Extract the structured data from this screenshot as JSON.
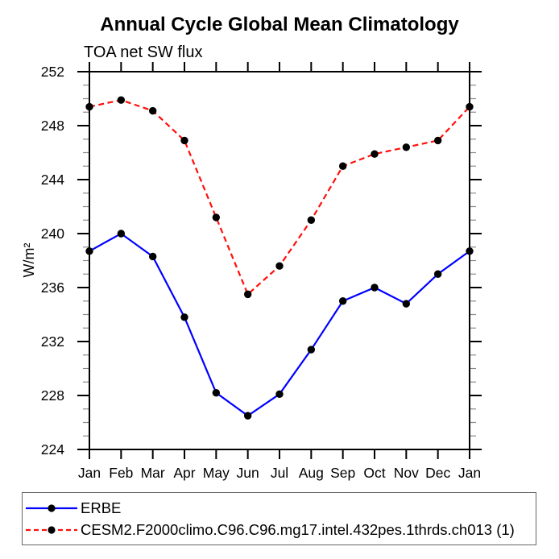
{
  "chart_data": {
    "type": "line",
    "title": "Annual Cycle Global Mean Climatology",
    "left_string": "TOA net SW flux",
    "ylabel": "W/m²",
    "xlabel": "",
    "x_categories": [
      "Jan",
      "Feb",
      "Mar",
      "Apr",
      "May",
      "Jun",
      "Jul",
      "Aug",
      "Sep",
      "Oct",
      "Nov",
      "Dec",
      "Jan"
    ],
    "ylim": [
      224,
      252
    ],
    "yticks_major": [
      224,
      228,
      232,
      236,
      240,
      244,
      248,
      252
    ],
    "ytick_minor_interval": 1,
    "grid": false,
    "legend_position": "bottom",
    "axis_color": "#000000",
    "series": [
      {
        "name": "ERBE",
        "color": "#0000ff",
        "style": "solid",
        "marker": "filled-circle",
        "marker_color": "#000000",
        "values": [
          238.7,
          240.0,
          238.3,
          233.8,
          228.2,
          226.5,
          228.1,
          231.4,
          235.0,
          236.0,
          234.8,
          237.0,
          238.7
        ]
      },
      {
        "name": "CESM2.F2000climo.C96.C96.mg17.intel.432pes.1thrds.ch013 (1)",
        "color": "#ff0f0a",
        "style": "dashed",
        "marker": "filled-circle",
        "marker_color": "#000000",
        "values": [
          249.4,
          249.9,
          249.1,
          246.9,
          241.2,
          235.5,
          237.6,
          241.0,
          245.0,
          245.9,
          246.4,
          246.9,
          249.4
        ]
      }
    ]
  }
}
